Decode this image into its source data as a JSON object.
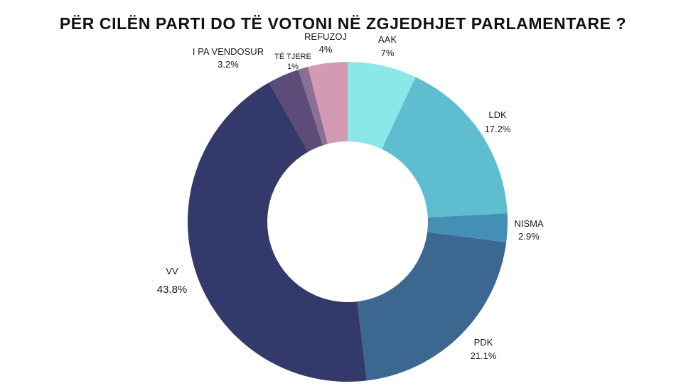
{
  "chart_data": {
    "type": "pie",
    "variant": "donut",
    "title": "PËR CILËN PARTI DO TË VOTONI NË ZGJEDHJET PARLAMENTARE ?",
    "categories": [
      "AAK",
      "LDK",
      "NISMA",
      "PDK",
      "VV",
      "I PA VENDOSUR",
      "TË TJERE",
      "REFUZOJ"
    ],
    "values": [
      7,
      17.2,
      2.9,
      21.1,
      43.8,
      3.2,
      1,
      4
    ],
    "value_labels": [
      "7%",
      "17.2%",
      "2.9%",
      "21.1%",
      "43.8%",
      "3.2%",
      "1%",
      "4%"
    ],
    "colors": [
      "#8ce8e8",
      "#5fbdd0",
      "#4490b4",
      "#3b6791",
      "#33396a",
      "#5d4b7a",
      "#8a6f98",
      "#d49ab2"
    ],
    "start_angle": "12 o'clock",
    "direction": "clockwise",
    "legend": "none"
  }
}
